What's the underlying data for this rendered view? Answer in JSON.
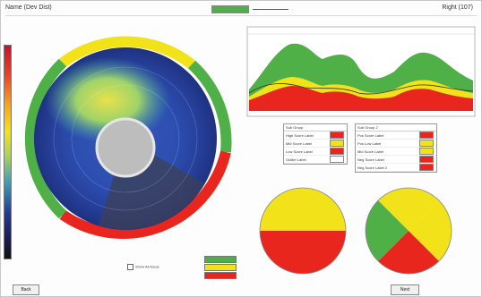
{
  "header": {
    "title": "Name (Dev Dist)",
    "right_text": "Right (107)"
  },
  "colors": {
    "green": "#4fb047",
    "yellow": "#f2e21a",
    "red": "#e8261e"
  },
  "table_left": {
    "title": "Sub Group",
    "rows": [
      {
        "label": "High Score Label",
        "color": "#e8261e"
      },
      {
        "label": "Mid Score Label",
        "color": "#f2e21a"
      },
      {
        "label": "Low Score Label",
        "color": "#e8261e"
      },
      {
        "label": "Outlier Label",
        "color": "#ffffff"
      }
    ]
  },
  "table_right": {
    "title": "Sub Group 2",
    "rows": [
      {
        "label": "Pos Score Label",
        "color": "#e8261e"
      },
      {
        "label": "Pos Low Label",
        "color": "#f2e21a"
      },
      {
        "label": "Mid Score Label",
        "color": "#f2e21a"
      },
      {
        "label": "Neg Score Label",
        "color": "#e8261e"
      },
      {
        "label": "Neg Score Label 2",
        "color": "#e8261e"
      }
    ]
  },
  "buttons": {
    "left": "Back",
    "right": "Next"
  },
  "foot_note": "Show All Areas"
}
